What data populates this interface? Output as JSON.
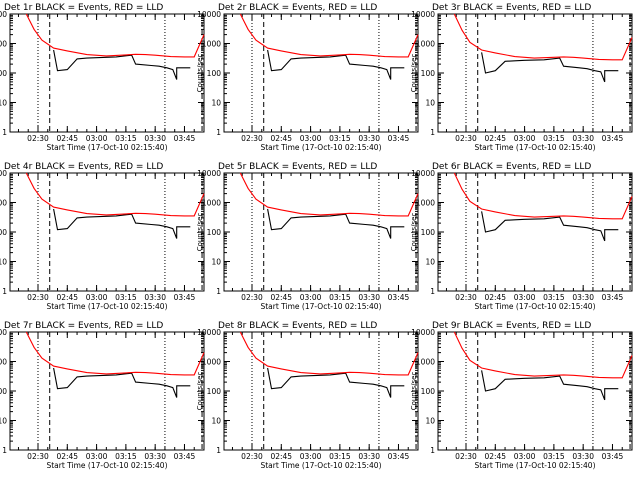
{
  "figure": {
    "y_axis_label": "Counts/sec",
    "x_axis_label": "Start Time (17-Oct-10 02:15:40)",
    "colors": {
      "events": "#000000",
      "lld": "#ff0000",
      "axes": "#000000"
    }
  },
  "chart_data": [
    {
      "type": "line",
      "title": "Det 1r BLACK = Events, RED = LLD",
      "xlabel": "Start Time (17-Oct-10 02:15:40)",
      "ylabel": "Counts/sec",
      "y_scale": "log",
      "ylim": [
        1,
        10000
      ],
      "xlim": [
        "02:15:40",
        "03:55:00"
      ],
      "x_ticks": [
        "02:30",
        "02:45",
        "03:00",
        "03:15",
        "03:30",
        "03:45"
      ],
      "y_ticks": [
        "1",
        "10",
        "100",
        "1000",
        "10000"
      ],
      "markers": {
        "dotted": [
          "02:30",
          "03:35"
        ],
        "dashed": [
          "02:36",
          "03:54"
        ]
      },
      "series": [
        {
          "name": "Events",
          "x": [
            "02:38",
            "02:40",
            "02:45",
            "02:50",
            "02:55",
            "03:00",
            "03:10",
            "03:18",
            "03:20",
            "03:28",
            "03:32",
            "03:36",
            "03:39",
            "03:41",
            "03:41",
            "03:42",
            "03:46",
            "03:48"
          ],
          "y": [
            600,
            120,
            130,
            300,
            320,
            330,
            350,
            400,
            200,
            180,
            170,
            150,
            130,
            60,
            150,
            150,
            150,
            150
          ]
        },
        {
          "name": "LLD",
          "x": [
            "02:24",
            "02:28",
            "02:32",
            "02:38",
            "02:45",
            "02:55",
            "03:05",
            "03:15",
            "03:20",
            "03:25",
            "03:30",
            "03:38",
            "03:45",
            "03:50",
            "03:55"
          ],
          "y": [
            10000,
            3000,
            1300,
            700,
            560,
            420,
            380,
            410,
            430,
            420,
            400,
            360,
            350,
            350,
            2000
          ]
        }
      ]
    },
    {
      "type": "line",
      "title": "Det 2r BLACK = Events, RED = LLD",
      "xlabel": "Start Time (17-Oct-10 02:15:40)",
      "ylabel": "Counts/sec",
      "y_scale": "log",
      "ylim": [
        1,
        10000
      ],
      "xlim": [
        "02:15:40",
        "03:55:00"
      ],
      "x_ticks": [
        "02:30",
        "02:45",
        "03:00",
        "03:15",
        "03:30",
        "03:45"
      ],
      "y_ticks": [
        "1",
        "10",
        "100",
        "1000",
        "10000"
      ],
      "markers": {
        "dotted": [
          "02:30",
          "03:35"
        ],
        "dashed": [
          "02:36",
          "03:54"
        ]
      },
      "series": [
        {
          "name": "Events",
          "x": [
            "02:38",
            "02:40",
            "02:45",
            "02:50",
            "02:55",
            "03:00",
            "03:10",
            "03:18",
            "03:20",
            "03:28",
            "03:32",
            "03:36",
            "03:39",
            "03:41",
            "03:41",
            "03:42",
            "03:46",
            "03:48"
          ],
          "y": [
            600,
            120,
            130,
            300,
            320,
            330,
            350,
            400,
            200,
            180,
            170,
            150,
            130,
            60,
            150,
            150,
            150,
            150
          ]
        },
        {
          "name": "LLD",
          "x": [
            "02:24",
            "02:28",
            "02:32",
            "02:38",
            "02:45",
            "02:55",
            "03:05",
            "03:15",
            "03:20",
            "03:25",
            "03:30",
            "03:38",
            "03:45",
            "03:50",
            "03:55"
          ],
          "y": [
            10000,
            3000,
            1300,
            700,
            560,
            420,
            380,
            410,
            430,
            420,
            400,
            360,
            350,
            350,
            2000
          ]
        }
      ]
    },
    {
      "type": "line",
      "title": "Det 3r BLACK = Events, RED = LLD",
      "xlabel": "Start Time (17-Oct-10 02:15:40)",
      "ylabel": "Counts/sec",
      "y_scale": "log",
      "ylim": [
        1,
        10000
      ],
      "xlim": [
        "02:15:40",
        "03:55:00"
      ],
      "x_ticks": [
        "02:30",
        "02:45",
        "03:00",
        "03:15",
        "03:30",
        "03:45"
      ],
      "y_ticks": [
        "1",
        "10",
        "100",
        "1000",
        "10000"
      ],
      "markers": {
        "dotted": [
          "02:30",
          "03:35"
        ],
        "dashed": [
          "02:36",
          "03:54"
        ]
      },
      "series": [
        {
          "name": "Events",
          "x": [
            "02:38",
            "02:40",
            "02:45",
            "02:50",
            "02:55",
            "03:00",
            "03:10",
            "03:18",
            "03:20",
            "03:28",
            "03:32",
            "03:36",
            "03:39",
            "03:41",
            "03:41",
            "03:42",
            "03:46",
            "03:48"
          ],
          "y": [
            500,
            100,
            120,
            250,
            260,
            270,
            280,
            320,
            170,
            150,
            140,
            120,
            110,
            50,
            120,
            120,
            120,
            120
          ]
        },
        {
          "name": "LLD",
          "x": [
            "02:24",
            "02:28",
            "02:32",
            "02:38",
            "02:45",
            "02:55",
            "03:05",
            "03:15",
            "03:20",
            "03:25",
            "03:30",
            "03:38",
            "03:45",
            "03:50",
            "03:55"
          ],
          "y": [
            10000,
            2800,
            1100,
            600,
            480,
            360,
            320,
            340,
            350,
            340,
            320,
            290,
            280,
            280,
            1600
          ]
        }
      ]
    },
    {
      "type": "line",
      "title": "Det 4r BLACK = Events, RED = LLD",
      "xlabel": "Start Time (17-Oct-10 02:15:40)",
      "ylabel": "Counts/sec",
      "y_scale": "log",
      "ylim": [
        1,
        10000
      ],
      "xlim": [
        "02:15:40",
        "03:55:00"
      ],
      "x_ticks": [
        "02:30",
        "02:45",
        "03:00",
        "03:15",
        "03:30",
        "03:45"
      ],
      "y_ticks": [
        "1",
        "10",
        "100",
        "1000",
        "10000"
      ],
      "markers": {
        "dotted": [
          "02:30",
          "03:35"
        ],
        "dashed": [
          "02:36",
          "03:54"
        ]
      },
      "series": [
        {
          "name": "Events",
          "x": [
            "02:38",
            "02:40",
            "02:45",
            "02:50",
            "02:55",
            "03:00",
            "03:10",
            "03:18",
            "03:20",
            "03:28",
            "03:32",
            "03:36",
            "03:39",
            "03:41",
            "03:41",
            "03:42",
            "03:46",
            "03:48"
          ],
          "y": [
            600,
            120,
            130,
            300,
            320,
            330,
            350,
            400,
            200,
            180,
            170,
            150,
            130,
            60,
            150,
            150,
            150,
            150
          ]
        },
        {
          "name": "LLD",
          "x": [
            "02:24",
            "02:28",
            "02:32",
            "02:38",
            "02:45",
            "02:55",
            "03:05",
            "03:15",
            "03:20",
            "03:25",
            "03:30",
            "03:38",
            "03:45",
            "03:50",
            "03:55"
          ],
          "y": [
            10000,
            3000,
            1300,
            700,
            560,
            420,
            380,
            410,
            430,
            420,
            400,
            360,
            350,
            350,
            2000
          ]
        }
      ]
    },
    {
      "type": "line",
      "title": "Det 5r BLACK = Events, RED = LLD",
      "xlabel": "Start Time (17-Oct-10 02:15:40)",
      "ylabel": "Counts/sec",
      "y_scale": "log",
      "ylim": [
        1,
        10000
      ],
      "xlim": [
        "02:15:40",
        "03:55:00"
      ],
      "x_ticks": [
        "02:30",
        "02:45",
        "03:00",
        "03:15",
        "03:30",
        "03:45"
      ],
      "y_ticks": [
        "1",
        "10",
        "100",
        "1000",
        "10000"
      ],
      "markers": {
        "dotted": [
          "02:30",
          "03:35"
        ],
        "dashed": [
          "02:36",
          "03:54"
        ]
      },
      "series": [
        {
          "name": "Events",
          "x": [
            "02:38",
            "02:40",
            "02:45",
            "02:50",
            "02:55",
            "03:00",
            "03:10",
            "03:18",
            "03:20",
            "03:28",
            "03:32",
            "03:36",
            "03:39",
            "03:41",
            "03:41",
            "03:42",
            "03:46",
            "03:48"
          ],
          "y": [
            600,
            120,
            130,
            300,
            320,
            330,
            350,
            400,
            200,
            180,
            170,
            150,
            130,
            60,
            150,
            150,
            150,
            150
          ]
        },
        {
          "name": "LLD",
          "x": [
            "02:24",
            "02:28",
            "02:32",
            "02:38",
            "02:45",
            "02:55",
            "03:05",
            "03:15",
            "03:20",
            "03:25",
            "03:30",
            "03:38",
            "03:45",
            "03:50",
            "03:55"
          ],
          "y": [
            10000,
            3000,
            1300,
            700,
            560,
            420,
            380,
            410,
            430,
            420,
            400,
            360,
            350,
            350,
            2000
          ]
        }
      ]
    },
    {
      "type": "line",
      "title": "Det 6r BLACK = Events, RED = LLD",
      "xlabel": "Start Time (17-Oct-10 02:15:40)",
      "ylabel": "Counts/sec",
      "y_scale": "log",
      "ylim": [
        1,
        10000
      ],
      "xlim": [
        "02:15:40",
        "03:55:00"
      ],
      "x_ticks": [
        "02:30",
        "02:45",
        "03:00",
        "03:15",
        "03:30",
        "03:45"
      ],
      "y_ticks": [
        "1",
        "10",
        "100",
        "1000",
        "10000"
      ],
      "markers": {
        "dotted": [
          "02:30",
          "03:35"
        ],
        "dashed": [
          "02:36",
          "03:54"
        ]
      },
      "series": [
        {
          "name": "Events",
          "x": [
            "02:38",
            "02:40",
            "02:45",
            "02:50",
            "02:55",
            "03:00",
            "03:10",
            "03:18",
            "03:20",
            "03:28",
            "03:32",
            "03:36",
            "03:39",
            "03:41",
            "03:41",
            "03:42",
            "03:46",
            "03:48"
          ],
          "y": [
            500,
            100,
            120,
            250,
            260,
            270,
            280,
            320,
            170,
            150,
            140,
            120,
            110,
            50,
            120,
            120,
            120,
            120
          ]
        },
        {
          "name": "LLD",
          "x": [
            "02:24",
            "02:28",
            "02:32",
            "02:38",
            "02:45",
            "02:55",
            "03:05",
            "03:15",
            "03:20",
            "03:25",
            "03:30",
            "03:38",
            "03:45",
            "03:50",
            "03:55"
          ],
          "y": [
            10000,
            2800,
            1100,
            600,
            480,
            360,
            320,
            340,
            350,
            340,
            320,
            290,
            280,
            280,
            1600
          ]
        }
      ]
    },
    {
      "type": "line",
      "title": "Det 7r BLACK = Events, RED = LLD",
      "xlabel": "Start Time (17-Oct-10 02:15:40)",
      "ylabel": "Counts/sec",
      "y_scale": "log",
      "ylim": [
        1,
        10000
      ],
      "xlim": [
        "02:15:40",
        "03:55:00"
      ],
      "x_ticks": [
        "02:30",
        "02:45",
        "03:00",
        "03:15",
        "03:30",
        "03:45"
      ],
      "y_ticks": [
        "1",
        "10",
        "100",
        "1000",
        "10000"
      ],
      "markers": {
        "dotted": [
          "02:30",
          "03:35"
        ],
        "dashed": [
          "02:36",
          "03:54"
        ]
      },
      "series": [
        {
          "name": "Events",
          "x": [
            "02:38",
            "02:40",
            "02:45",
            "02:50",
            "02:55",
            "03:00",
            "03:10",
            "03:18",
            "03:20",
            "03:28",
            "03:32",
            "03:36",
            "03:39",
            "03:41",
            "03:41",
            "03:42",
            "03:46",
            "03:48"
          ],
          "y": [
            600,
            120,
            130,
            300,
            320,
            330,
            350,
            400,
            200,
            180,
            170,
            150,
            130,
            60,
            150,
            150,
            150,
            150
          ]
        },
        {
          "name": "LLD",
          "x": [
            "02:24",
            "02:28",
            "02:32",
            "02:38",
            "02:45",
            "02:55",
            "03:05",
            "03:15",
            "03:20",
            "03:25",
            "03:30",
            "03:38",
            "03:45",
            "03:50",
            "03:55"
          ],
          "y": [
            10000,
            3000,
            1300,
            700,
            560,
            420,
            380,
            410,
            430,
            420,
            400,
            360,
            350,
            350,
            2000
          ]
        }
      ]
    },
    {
      "type": "line",
      "title": "Det 8r BLACK = Events, RED = LLD",
      "xlabel": "Start Time (17-Oct-10 02:15:40)",
      "ylabel": "Counts/sec",
      "y_scale": "log",
      "ylim": [
        1,
        10000
      ],
      "xlim": [
        "02:15:40",
        "03:55:00"
      ],
      "x_ticks": [
        "02:30",
        "02:45",
        "03:00",
        "03:15",
        "03:30",
        "03:45"
      ],
      "y_ticks": [
        "1",
        "10",
        "100",
        "1000",
        "10000"
      ],
      "markers": {
        "dotted": [
          "02:30",
          "03:35"
        ],
        "dashed": [
          "02:36",
          "03:54"
        ]
      },
      "series": [
        {
          "name": "Events",
          "x": [
            "02:38",
            "02:40",
            "02:45",
            "02:50",
            "02:55",
            "03:00",
            "03:10",
            "03:18",
            "03:20",
            "03:28",
            "03:32",
            "03:36",
            "03:39",
            "03:41",
            "03:41",
            "03:42",
            "03:46",
            "03:48"
          ],
          "y": [
            600,
            120,
            130,
            300,
            320,
            330,
            350,
            400,
            200,
            180,
            170,
            150,
            130,
            60,
            150,
            150,
            150,
            150
          ]
        },
        {
          "name": "LLD",
          "x": [
            "02:24",
            "02:28",
            "02:32",
            "02:38",
            "02:45",
            "02:55",
            "03:05",
            "03:15",
            "03:20",
            "03:25",
            "03:30",
            "03:38",
            "03:45",
            "03:50",
            "03:55"
          ],
          "y": [
            10000,
            3000,
            1300,
            700,
            560,
            420,
            380,
            410,
            430,
            420,
            400,
            360,
            350,
            350,
            2000
          ]
        }
      ]
    },
    {
      "type": "line",
      "title": "Det 9r BLACK = Events, RED = LLD",
      "xlabel": "Start Time (17-Oct-10 02:15:40)",
      "ylabel": "Counts/sec",
      "y_scale": "log",
      "ylim": [
        1,
        10000
      ],
      "xlim": [
        "02:15:40",
        "03:55:00"
      ],
      "x_ticks": [
        "02:30",
        "02:45",
        "03:00",
        "03:15",
        "03:30",
        "03:45"
      ],
      "y_ticks": [
        "1",
        "10",
        "100",
        "1000",
        "10000"
      ],
      "markers": {
        "dotted": [
          "02:30",
          "03:35"
        ],
        "dashed": [
          "02:36",
          "03:54"
        ]
      },
      "series": [
        {
          "name": "Events",
          "x": [
            "02:38",
            "02:40",
            "02:45",
            "02:50",
            "02:55",
            "03:00",
            "03:10",
            "03:18",
            "03:20",
            "03:28",
            "03:32",
            "03:36",
            "03:39",
            "03:41",
            "03:41",
            "03:42",
            "03:46",
            "03:48"
          ],
          "y": [
            500,
            100,
            120,
            250,
            260,
            270,
            280,
            320,
            170,
            150,
            140,
            120,
            110,
            50,
            120,
            120,
            120,
            120
          ]
        },
        {
          "name": "LLD",
          "x": [
            "02:24",
            "02:28",
            "02:32",
            "02:38",
            "02:45",
            "02:55",
            "03:05",
            "03:15",
            "03:20",
            "03:25",
            "03:30",
            "03:38",
            "03:45",
            "03:50",
            "03:55"
          ],
          "y": [
            10000,
            2800,
            1100,
            600,
            480,
            360,
            320,
            340,
            350,
            340,
            320,
            290,
            280,
            280,
            1600
          ]
        }
      ]
    }
  ]
}
